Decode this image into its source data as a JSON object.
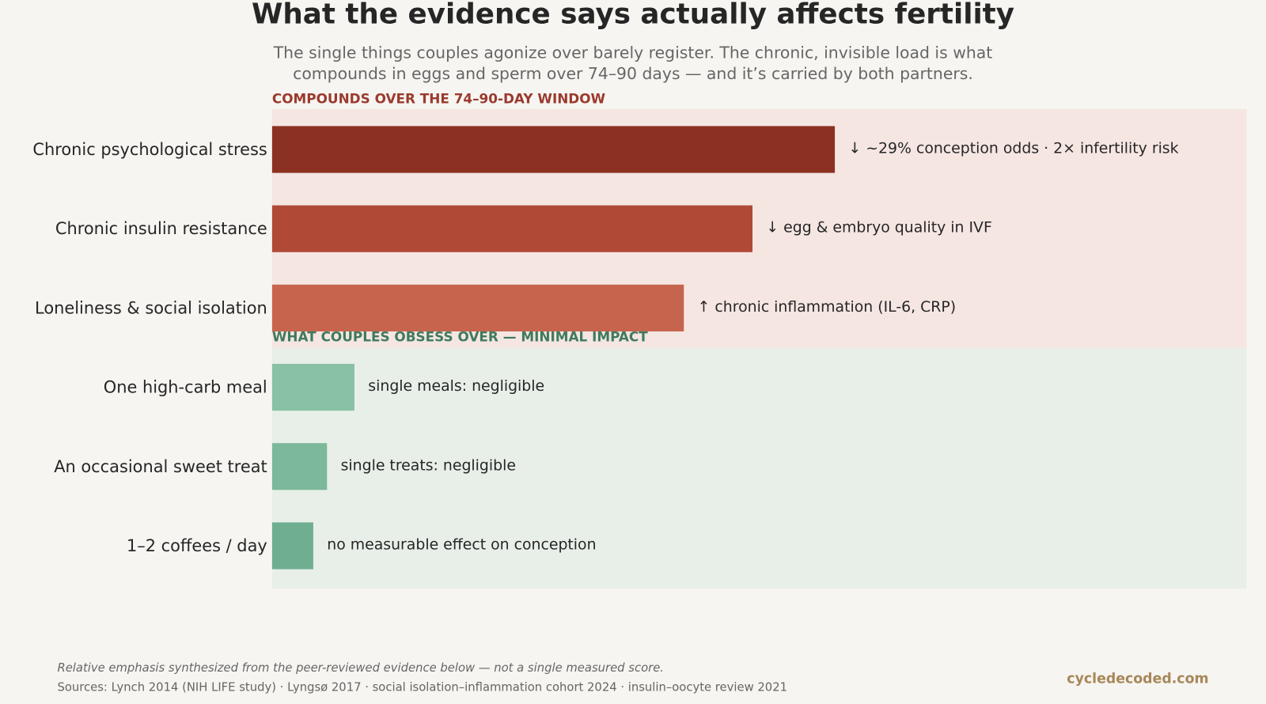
{
  "chart_data": {
    "type": "bar",
    "orientation": "horizontal",
    "title": "What the evidence says actually affects fertility",
    "subtitle": [
      "The single things couples agonize over barely register. The chronic, invisible load is what",
      "compounds in eggs and sperm over 74–90 days — and it’s carried by both partners."
    ],
    "xlim": [
      0,
      142
    ],
    "groups": [
      {
        "name": "COMPOUNDS OVER THE 74–90-DAY WINDOW",
        "name_color": "#9b3a2e",
        "background": "#f5e6e2",
        "categories": [
          "Chronic psychological stress",
          "Chronic insulin resistance",
          "Loneliness & social isolation"
        ],
        "values": [
          82,
          70,
          60
        ],
        "colors": [
          "#8c3122",
          "#b04a37",
          "#c7644e"
        ],
        "annotations": [
          "↓ ~29% conception odds · 2× infertility risk",
          "↓ egg & embryo quality in IVF",
          "↑ chronic inflammation (IL-6, CRP)"
        ]
      },
      {
        "name": "WHAT COUPLES OBSESS OVER — MINIMAL IMPACT",
        "name_color": "#3f7a5e",
        "background": "#e8efe8",
        "categories": [
          "One high-carb meal",
          "An occasional sweet treat",
          "1–2 coffees / day"
        ],
        "values": [
          12,
          8,
          6
        ],
        "colors": [
          "#88c1a4",
          "#7cb89a",
          "#6fae91"
        ],
        "annotations": [
          "single meals: negligible",
          "single treats: negligible",
          "no measurable effect on conception"
        ]
      }
    ],
    "footnote": "Relative emphasis synthesized from the peer-reviewed evidence below — not a single measured score.",
    "sources": "Sources: Lynch 2014 (NIH LIFE study) · Lyngsø 2017 · social isolation–inflammation cohort 2024 · insulin–oocyte review 2021",
    "brand": "cycledecoded.com"
  }
}
